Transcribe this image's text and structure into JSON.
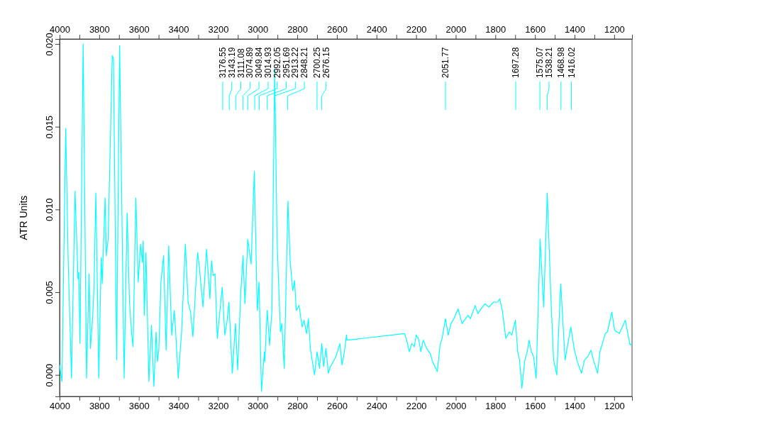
{
  "chart_data": {
    "type": "line",
    "ylabel": "ATR Units",
    "xlim": [
      4000,
      1110
    ],
    "xticks": [
      4000,
      {
        "value": 3900,
        "label": null
      },
      3800,
      {
        "value": 3700,
        "label": null
      },
      3600,
      {
        "value": 3500,
        "label": null
      },
      3400,
      {
        "value": 3300,
        "label": null
      },
      3200,
      {
        "value": 3100,
        "label": null
      },
      3000,
      {
        "value": 2900,
        "label": null
      },
      2800,
      {
        "value": 2700,
        "label": null
      },
      2600,
      {
        "value": 2500,
        "label": null
      },
      2400,
      {
        "value": 2300,
        "label": null
      },
      2200,
      {
        "value": 2100,
        "label": null
      },
      2000,
      {
        "value": 1900,
        "label": null
      },
      1800,
      {
        "value": 1700,
        "label": null
      },
      1600,
      {
        "value": 1500,
        "label": null
      },
      1400,
      {
        "value": 1300,
        "label": null
      },
      1200
    ],
    "x2lim": [
      4000,
      1110
    ],
    "x2ticks": [
      4000,
      {
        "value": 3900,
        "label": null
      },
      3800,
      {
        "value": 3700,
        "label": null
      },
      3600,
      {
        "value": 3500,
        "label": null
      },
      3400,
      {
        "value": 3300,
        "label": null
      },
      3200,
      {
        "value": 3100,
        "label": null
      },
      3000,
      {
        "value": 2900,
        "label": null
      },
      2800,
      {
        "value": 2700,
        "label": null
      },
      2600,
      {
        "value": 2500,
        "label": null
      },
      2400,
      {
        "value": 2300,
        "label": null
      },
      2200,
      {
        "value": 2100,
        "label": null
      },
      2000,
      {
        "value": 1900,
        "label": null
      },
      1800,
      {
        "value": 1700,
        "label": null
      },
      1600,
      {
        "value": 1500,
        "label": null
      },
      1400,
      {
        "value": 1300,
        "label": null
      },
      1200
    ],
    "ylim": [
      -0.0013,
      0.0203
    ],
    "yticks": [
      {
        "value": 0,
        "label": "0.000"
      },
      {
        "value": 0.005,
        "label": "0.005"
      },
      {
        "value": 0.01,
        "label": "0.010"
      },
      {
        "value": 0.015,
        "label": "0.015"
      },
      {
        "value": 0.02,
        "label": "0.020"
      }
    ],
    "grid": false,
    "marker": "none",
    "line_style": "solid",
    "series": [
      {
        "color": "#00ffff",
        "x": [
          4000,
          3988,
          3969,
          3957,
          3940,
          3922,
          3907,
          3903,
          3897,
          3881,
          3864,
          3851,
          3844,
          3833,
          3826,
          3817,
          3802,
          3790,
          3785,
          3770,
          3764,
          3755,
          3734,
          3728,
          3712,
          3697,
          3674,
          3659,
          3647,
          3637,
          3629,
          3615,
          3603,
          3591,
          3582,
          3578,
          3572,
          3564,
          3549,
          3536,
          3524,
          3513,
          3506,
          3499,
          3488,
          3475,
          3462,
          3449,
          3434,
          3421,
          3414,
          3401,
          3384,
          3365,
          3351,
          3339,
          3327,
          3303,
          3295,
          3276,
          3258,
          3241,
          3233,
          3225,
          3215,
          3204,
          3179,
          3166,
          3155,
          3145,
          3128,
          3112,
          3101,
          3086,
          3074,
          3064,
          3050,
          3033,
          3017,
          3002,
          2993,
          2981,
          2966,
          2964,
          2952,
          2940,
          2928,
          2914,
          2902,
          2885,
          2878,
          2866,
          2847,
          2836,
          2823,
          2814,
          2805,
          2791,
          2776,
          2766,
          2753,
          2744,
          2733,
          2713,
          2700,
          2688,
          2676,
          2667,
          2655,
          2643,
          2633,
          2623,
          2605,
          2585,
          2574,
          2562,
          2552,
          2549,
          2258,
          2248,
          2234,
          2222,
          2209,
          2200,
          2188,
          2176,
          2164,
          2147,
          2129,
          2117,
          2093,
          2079,
          2069,
          2052,
          2038,
          2024,
          2009,
          1988,
          1968,
          1950,
          1938,
          1926,
          1902,
          1888,
          1872,
          1852,
          1833,
          1809,
          1788,
          1778,
          1765,
          1747,
          1729,
          1717,
          1699,
          1687,
          1678,
          1666,
          1651,
          1639,
          1630,
          1618,
          1607,
          1594,
          1574,
          1556,
          1538,
          1520,
          1506,
          1490,
          1470,
          1448,
          1419,
          1401,
          1386,
          1365,
          1350,
          1334,
          1317,
          1305,
          1284,
          1272,
          1245,
          1234,
          1212,
          1198,
          1174,
          1144,
          1120,
          1111
        ],
        "values": [
          0.0006,
          -0.0004,
          0.0149,
          0.0071,
          -0.0002,
          0.0111,
          0.0058,
          0.0062,
          0.0019,
          0.02,
          -0.0002,
          0.0061,
          0.0016,
          0.0035,
          0.0054,
          0.011,
          -0.0002,
          0.0071,
          0.0055,
          0.0107,
          0.0072,
          0.0082,
          0.0193,
          0.0191,
          0.0009,
          0.0199,
          -0.0002,
          0.0098,
          0.0044,
          0.0026,
          0.0017,
          0.0107,
          0.0056,
          0.0079,
          0.0068,
          0.0081,
          0.0036,
          0.0074,
          -0.0004,
          0.003,
          -0.0007,
          0.0026,
          0.0008,
          0.0015,
          0.0057,
          0.0072,
          0.0015,
          0.0078,
          0.0024,
          0.0039,
          0.0026,
          -0.0002,
          0.0026,
          0.0079,
          0.0044,
          0.0038,
          0.0023,
          0.0074,
          0.0066,
          0.0041,
          0.0076,
          0.0046,
          0.0069,
          0.006,
          0.0061,
          0.0022,
          0.0053,
          0.0024,
          0.0032,
          0.0044,
          0.0001,
          0.0031,
          0.0003,
          0.0048,
          0.0072,
          0.0043,
          0.0082,
          0.0067,
          0.0123,
          0.0039,
          0.0056,
          -0.001,
          0.0014,
          0.0008,
          0.0039,
          0.0018,
          0.0039,
          0.0185,
          0.0081,
          0.0026,
          0.0031,
          0.0004,
          0.0105,
          0.0069,
          0.0051,
          0.0057,
          0.0039,
          0.0042,
          0.0029,
          0.0033,
          0.0025,
          0.0034,
          0.0015,
          0,
          0.0014,
          0.0004,
          0.0019,
          0.0005,
          0.0016,
          0.0001,
          0.0005,
          0.0007,
          0.0011,
          0.0019,
          0.0006,
          0.0014,
          0.0024,
          0.0021,
          0.0025,
          0.0021,
          0.0014,
          0.0019,
          0.0017,
          0.0024,
          0.0022,
          0.0014,
          0.0021,
          0.0016,
          0.0013,
          0.0008,
          0.0002,
          0.0018,
          0.0022,
          0.0034,
          0.0024,
          0.0031,
          0.0034,
          0.004,
          0.0031,
          0.0034,
          0.0036,
          0.0034,
          0.0042,
          0.0037,
          0.004,
          0.0043,
          0.0041,
          0.0044,
          0.0044,
          0.0046,
          0.0039,
          0.0022,
          0.0026,
          0.0024,
          0.0033,
          0.0014,
          0.0009,
          -0.0008,
          0.0009,
          0.0014,
          0.0021,
          0.0014,
          0.0011,
          -0.0002,
          0.0082,
          0.0041,
          0.011,
          0.0048,
          0.0009,
          0,
          0.0055,
          0.0009,
          0.0029,
          0.0015,
          0.0008,
          0.0001,
          0.0009,
          0.0011,
          0.0015,
          0.0009,
          0.0001,
          0.0014,
          0.0025,
          0.0026,
          0.0038,
          0.0027,
          0.0025,
          0.0033,
          0.0018,
          0.0019
        ]
      }
    ],
    "annotations": [
      {
        "text": "3176.55",
        "x": 3176.55
      },
      {
        "text": "3143.19",
        "x": 3143.19
      },
      {
        "text": "3111.08",
        "x": 3111.08
      },
      {
        "text": "3074.89",
        "x": 3074.89
      },
      {
        "text": "3049.84",
        "x": 3049.84
      },
      {
        "text": "3014.93",
        "x": 3014.93
      },
      {
        "text": "2992.05",
        "x": 2992.05
      },
      {
        "text": "2951.69",
        "x": 2951.69
      },
      {
        "text": "2913.22",
        "x": 2913.22
      },
      {
        "text": "2848.21",
        "x": 2848.21
      },
      {
        "text": "2700.25",
        "x": 2700.25
      },
      {
        "text": "2676.15",
        "x": 2676.15
      },
      {
        "text": "2051.77",
        "x": 2051.77
      },
      {
        "text": "1697.28",
        "x": 1697.28
      },
      {
        "text": "1575.07",
        "x": 1575.07
      },
      {
        "text": "1538.21",
        "x": 1538.21
      },
      {
        "text": "1468.98",
        "x": 1468.98
      },
      {
        "text": "1416.02",
        "x": 1416.02
      }
    ]
  }
}
